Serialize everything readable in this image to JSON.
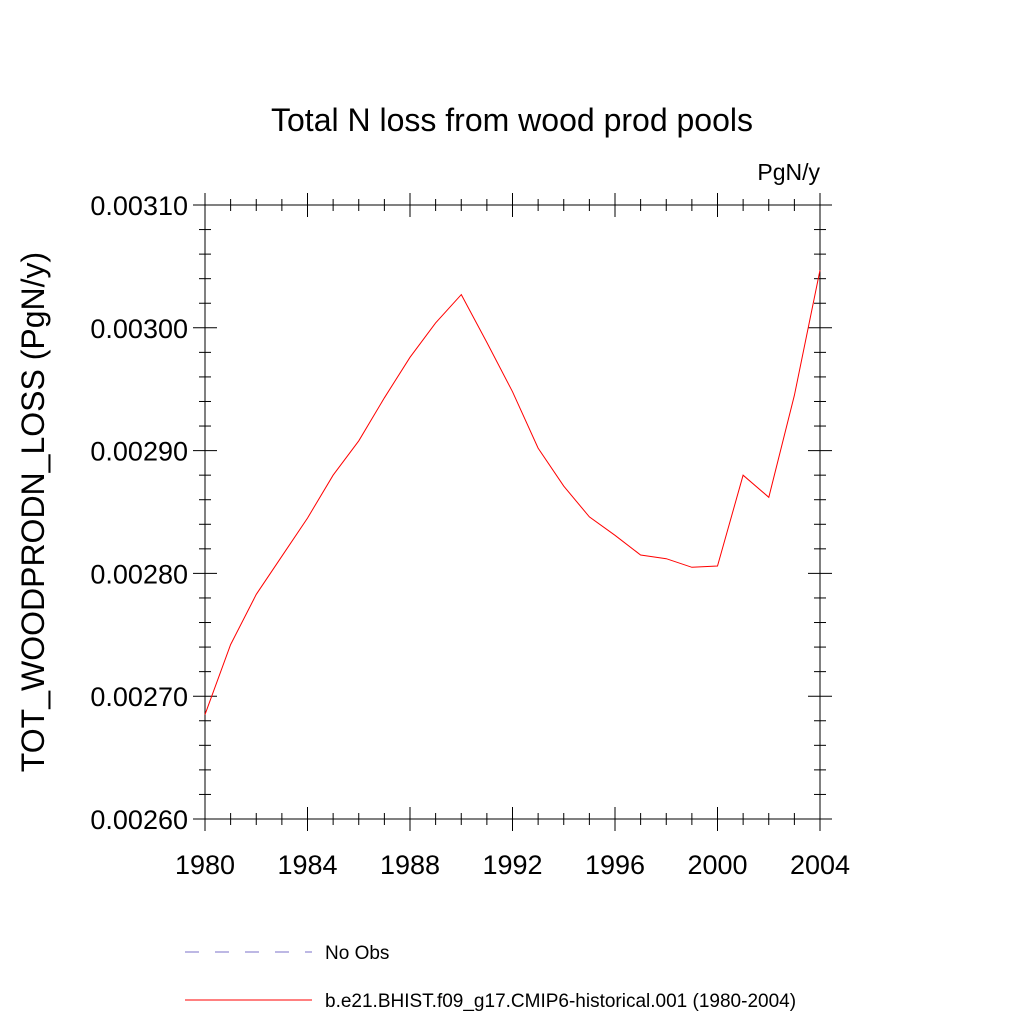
{
  "chart_data": {
    "type": "line",
    "title": "Total N loss from wood prod pools",
    "units_label": "PgN/y",
    "ylabel": "TOT_WOODPRODN_LOSS  (PgN/y)",
    "xlabel": "",
    "xlim": [
      1980,
      2004
    ],
    "ylim": [
      0.0026,
      0.0031
    ],
    "x_ticks": [
      1980,
      1984,
      1988,
      1992,
      1996,
      2000,
      2004
    ],
    "x_tick_labels": [
      "1980",
      "1984",
      "1988",
      "1992",
      "1996",
      "2000",
      "2004"
    ],
    "y_ticks": [
      0.0026,
      0.0027,
      0.0028,
      0.0029,
      0.003,
      0.0031
    ],
    "y_tick_labels": [
      "0.00260",
      "0.00270",
      "0.00280",
      "0.00290",
      "0.00300",
      "0.00310"
    ],
    "grid": false,
    "legend_position": "bottom",
    "series": [
      {
        "name": "No Obs",
        "color": "#7b72c8",
        "dash": "dashed",
        "x": [],
        "values": []
      },
      {
        "name": "b.e21.BHIST.f09_g17.CMIP6-historical.001 (1980-2004)",
        "color": "#ff0000",
        "dash": "solid",
        "x": [
          1980,
          1981,
          1982,
          1983,
          1984,
          1985,
          1986,
          1987,
          1988,
          1989,
          1990,
          1991,
          1992,
          1993,
          1994,
          1995,
          1996,
          1997,
          1998,
          1999,
          2000,
          2001,
          2002,
          2003,
          2004
        ],
        "values": [
          0.002685,
          0.002742,
          0.002783,
          0.002814,
          0.002845,
          0.00288,
          0.002908,
          0.002943,
          0.002976,
          0.003004,
          0.003027,
          0.002988,
          0.002948,
          0.002902,
          0.002871,
          0.002846,
          0.002831,
          0.002815,
          0.002812,
          0.002805,
          0.002806,
          0.00288,
          0.002862,
          0.002945,
          0.003047
        ]
      }
    ]
  }
}
